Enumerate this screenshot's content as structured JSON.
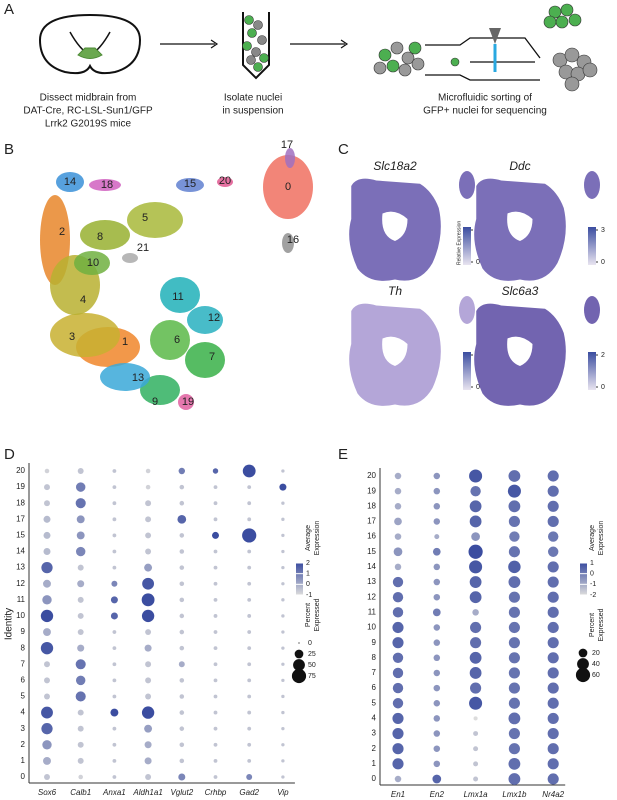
{
  "panel_a": {
    "label": "A",
    "steps": [
      {
        "lines": [
          "Dissect midbrain from",
          "DAT-Cre, RC-LSL-Sun1/GFP",
          "Lrrk2 G2019S mice"
        ]
      },
      {
        "lines": [
          "Isolate nuclei",
          "in suspension"
        ]
      },
      {
        "lines": [
          "Microfluidic sorting of",
          "GFP+ nuclei for sequencing"
        ]
      }
    ]
  },
  "panel_b": {
    "label": "B",
    "clusters": [
      "0",
      "1",
      "2",
      "3",
      "4",
      "5",
      "6",
      "7",
      "8",
      "9",
      "10",
      "11",
      "12",
      "13",
      "14",
      "15",
      "16",
      "17",
      "18",
      "19",
      "20",
      "21"
    ]
  },
  "panel_c": {
    "label": "C",
    "colorbar_title": "Relative Expression",
    "plots": [
      {
        "gene": "Slc18a2",
        "ticks": [
          2,
          0
        ]
      },
      {
        "gene": "Ddc",
        "ticks": [
          3,
          0
        ]
      },
      {
        "gene": "Th",
        "ticks": [
          2,
          0
        ]
      },
      {
        "gene": "Slc6a3",
        "ticks": [
          2,
          0
        ]
      }
    ]
  },
  "chart_data": [
    {
      "type": "dotplot",
      "label": "D",
      "y_label": "Identity",
      "categories": [
        "0",
        "1",
        "2",
        "3",
        "4",
        "5",
        "6",
        "7",
        "8",
        "9",
        "10",
        "11",
        "12",
        "13",
        "14",
        "15",
        "17",
        "18",
        "19",
        "20"
      ],
      "series": [
        {
          "name": "Sox6",
          "values": [
            10,
            20,
            30,
            45,
            50,
            10,
            10,
            10,
            55,
            20,
            55,
            30,
            20,
            45,
            15,
            15,
            15,
            10,
            10,
            5
          ],
          "expression": [
            -0.5,
            0,
            0.5,
            1.5,
            1.8,
            -0.5,
            -0.5,
            -0.5,
            1.8,
            0,
            2,
            0.5,
            0,
            1.5,
            -0.3,
            -0.3,
            -0.3,
            -0.5,
            -0.5,
            -0.8
          ]
        },
        {
          "name": "Calb1",
          "values": [
            5,
            10,
            10,
            10,
            10,
            35,
            30,
            35,
            15,
            10,
            10,
            10,
            15,
            10,
            30,
            20,
            20,
            35,
            30,
            10
          ],
          "expression": [
            -0.8,
            -0.5,
            -0.5,
            -0.5,
            -0.5,
            1.2,
            1,
            1.2,
            0,
            -0.5,
            -0.5,
            -0.5,
            0,
            -0.5,
            0.8,
            0.5,
            0.5,
            1.2,
            1,
            -0.5
          ]
        },
        {
          "name": "Anxa1",
          "values": [
            3,
            3,
            3,
            3,
            20,
            3,
            3,
            3,
            3,
            3,
            15,
            15,
            10,
            3,
            3,
            3,
            3,
            3,
            3,
            3
          ],
          "expression": [
            -0.5,
            -0.5,
            -0.5,
            -0.5,
            2,
            -0.5,
            -0.5,
            -0.5,
            -0.5,
            -0.5,
            1.5,
            1.5,
            0.8,
            -0.5,
            -0.5,
            -0.5,
            -0.5,
            -0.5,
            -0.5,
            -0.5
          ]
        },
        {
          "name": "Aldh1a1",
          "values": [
            10,
            15,
            15,
            20,
            55,
            10,
            10,
            10,
            15,
            10,
            55,
            60,
            50,
            20,
            10,
            10,
            10,
            10,
            5,
            5
          ],
          "expression": [
            -0.5,
            0,
            0,
            0.3,
            2,
            -0.5,
            -0.5,
            -0.5,
            0,
            -0.5,
            2,
            2,
            1.8,
            0.3,
            -0.5,
            -0.5,
            -0.5,
            -0.5,
            -0.8,
            -0.8
          ]
        },
        {
          "name": "Vglut2",
          "values": [
            15,
            5,
            5,
            5,
            5,
            5,
            5,
            10,
            5,
            5,
            5,
            5,
            5,
            5,
            5,
            5,
            25,
            5,
            5,
            12
          ],
          "expression": [
            0.8,
            -0.5,
            -0.5,
            -0.5,
            -0.5,
            -0.5,
            -0.5,
            0,
            -0.5,
            -0.5,
            -0.5,
            -0.5,
            -0.5,
            -0.5,
            -0.5,
            -0.5,
            1.5,
            -0.5,
            -0.5,
            1
          ]
        },
        {
          "name": "Crhbp",
          "values": [
            3,
            3,
            3,
            3,
            3,
            3,
            3,
            3,
            3,
            3,
            3,
            3,
            3,
            3,
            3,
            15,
            3,
            3,
            3,
            8
          ],
          "expression": [
            -0.5,
            -0.5,
            -0.5,
            -0.5,
            -0.5,
            -0.5,
            -0.5,
            -0.5,
            -0.5,
            -0.5,
            -0.5,
            -0.5,
            -0.5,
            -0.5,
            -0.5,
            2,
            -0.5,
            -0.5,
            -0.5,
            1.5
          ]
        },
        {
          "name": "Gad2",
          "values": [
            10,
            3,
            3,
            3,
            3,
            3,
            3,
            3,
            3,
            3,
            3,
            3,
            3,
            3,
            3,
            75,
            3,
            3,
            3,
            60
          ],
          "expression": [
            0.8,
            -0.5,
            -0.5,
            -0.5,
            -0.5,
            -0.5,
            -0.5,
            -0.5,
            -0.5,
            -0.5,
            -0.5,
            -0.5,
            -0.5,
            -0.5,
            -0.5,
            2,
            -0.5,
            -0.5,
            -0.5,
            2
          ]
        },
        {
          "name": "Vip",
          "values": [
            2,
            2,
            2,
            2,
            2,
            2,
            2,
            2,
            2,
            2,
            2,
            2,
            2,
            2,
            2,
            2,
            2,
            2,
            15,
            2
          ],
          "expression": [
            -0.5,
            -0.5,
            -0.5,
            -0.5,
            -0.5,
            -0.5,
            -0.5,
            -0.5,
            -0.5,
            -0.5,
            -0.5,
            -0.5,
            -0.5,
            -0.5,
            -0.5,
            -0.5,
            -0.5,
            -0.5,
            2,
            -0.5
          ]
        }
      ],
      "color_legend_title": [
        "Average",
        "Expression"
      ],
      "color_lim": [
        -1,
        2
      ],
      "color_ticks": [
        2,
        1,
        0,
        -1
      ],
      "color_range": [
        "#dcdcdc",
        "#3b4da0"
      ],
      "size_legend_title": [
        "Percent",
        "Expressed"
      ],
      "size_ticks": [
        0,
        25,
        50,
        75
      ]
    },
    {
      "type": "dotplot",
      "label": "E",
      "categories": [
        "0",
        "1",
        "2",
        "3",
        "4",
        "5",
        "6",
        "7",
        "8",
        "9",
        "10",
        "11",
        "12",
        "13",
        "14",
        "15",
        "16",
        "17",
        "18",
        "19",
        "20"
      ],
      "series": [
        {
          "name": "En1",
          "values": [
            10,
            35,
            35,
            35,
            35,
            30,
            30,
            30,
            30,
            35,
            35,
            30,
            30,
            30,
            10,
            20,
            10,
            15,
            10,
            10,
            10
          ],
          "expression": [
            -1,
            0.5,
            0.5,
            0.5,
            0.5,
            0.3,
            0.3,
            0.3,
            0.3,
            0.5,
            0.5,
            0.3,
            0.3,
            0.3,
            -1,
            -0.5,
            -1,
            -0.8,
            -1,
            -1,
            -1
          ]
        },
        {
          "name": "En2",
          "values": [
            20,
            10,
            10,
            10,
            10,
            10,
            10,
            10,
            10,
            10,
            10,
            15,
            10,
            10,
            10,
            15,
            5,
            10,
            10,
            10,
            10
          ],
          "expression": [
            0.5,
            -0.5,
            -0.5,
            -0.5,
            -0.5,
            -0.5,
            -0.5,
            -0.5,
            -0.5,
            -0.5,
            -0.5,
            0,
            -0.5,
            -0.5,
            -0.5,
            0,
            -1,
            -0.5,
            -0.5,
            -0.5,
            -0.5
          ]
        },
        {
          "name": "Lmx1a",
          "values": [
            5,
            5,
            5,
            5,
            3,
            50,
            35,
            40,
            40,
            35,
            35,
            10,
            40,
            40,
            50,
            60,
            20,
            40,
            40,
            30,
            50
          ],
          "expression": [
            -1.5,
            -1.5,
            -1.5,
            -1.5,
            -2,
            0.8,
            0.3,
            0.5,
            0.5,
            0.3,
            0.3,
            -1,
            0.5,
            0.5,
            0.8,
            1,
            -0.5,
            0.5,
            0.5,
            0.2,
            0.8
          ]
        },
        {
          "name": "Lmx1b",
          "values": [
            40,
            40,
            35,
            35,
            40,
            35,
            35,
            35,
            35,
            35,
            35,
            35,
            35,
            40,
            45,
            35,
            30,
            35,
            40,
            50,
            40
          ],
          "expression": [
            0.3,
            0.3,
            0.2,
            0.2,
            0.3,
            0.2,
            0.2,
            0.2,
            0.2,
            0.2,
            0.2,
            0.2,
            0.2,
            0.3,
            0.6,
            0.2,
            0,
            0.2,
            0.3,
            0.8,
            0.3
          ]
        },
        {
          "name": "Nr4a2",
          "values": [
            35,
            35,
            35,
            35,
            35,
            35,
            35,
            35,
            35,
            35,
            35,
            35,
            35,
            35,
            35,
            30,
            30,
            35,
            35,
            35,
            35
          ],
          "expression": [
            0.3,
            0.3,
            0.3,
            0.3,
            0.3,
            0.3,
            0.3,
            0.3,
            0.3,
            0.3,
            0.3,
            0.3,
            0.3,
            0.3,
            0.3,
            0.1,
            0.1,
            0.3,
            0.3,
            0.3,
            0.3
          ]
        }
      ],
      "color_legend_title": [
        "Average",
        "Expression"
      ],
      "color_lim": [
        -2,
        1
      ],
      "color_ticks": [
        1,
        0,
        -1,
        -2
      ],
      "color_range": [
        "#dcdcdc",
        "#3b4da0"
      ],
      "size_legend_title": [
        "Percent",
        "Expressed"
      ],
      "size_ticks": [
        20,
        40,
        60
      ]
    }
  ]
}
